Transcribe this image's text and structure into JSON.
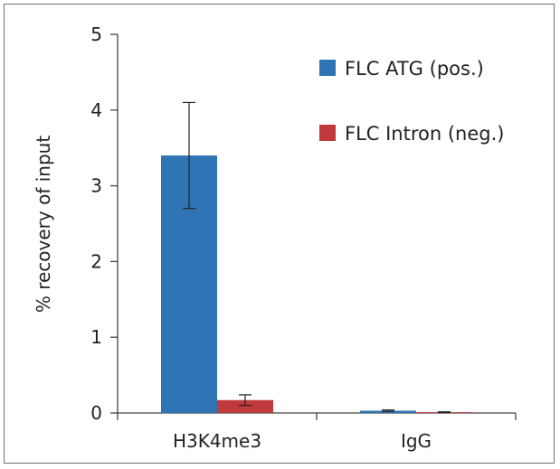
{
  "chart_data": {
    "type": "bar",
    "title": "",
    "xlabel": "",
    "ylabel": "% recovery of input",
    "ylim": [
      0,
      5
    ],
    "yticks": [
      0,
      1,
      2,
      3,
      4,
      5
    ],
    "grid": false,
    "legend_position": "top-right",
    "categories": [
      "H3K4me3",
      "IgG"
    ],
    "series": [
      {
        "name": "FLC ATG (pos.)",
        "color": "#2f74b5",
        "values": [
          3.4,
          0.03
        ],
        "error": [
          0.7,
          0.01
        ]
      },
      {
        "name": "FLC Intron (neg.)",
        "color": "#c0393b",
        "values": [
          0.17,
          0.01
        ],
        "error": [
          0.07,
          0.005
        ]
      }
    ]
  }
}
